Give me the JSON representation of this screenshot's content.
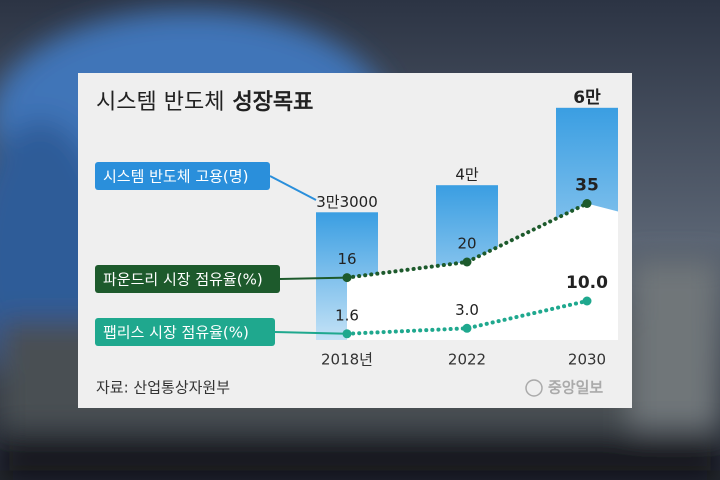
{
  "chart_data": {
    "type": "combo",
    "title": {
      "regular": "시스템 반도체",
      "bold": "성장목표"
    },
    "categories": [
      "2018년",
      "2022",
      "2030"
    ],
    "series": [
      {
        "name": "시스템 반도체 고용(명)",
        "type": "bar",
        "color": "#2a8fdb",
        "values": [
          33000,
          40000,
          60000
        ],
        "value_labels": [
          "3만3000",
          "4만",
          "6만"
        ]
      },
      {
        "name": "파운드리 시장 점유율(%)",
        "type": "line",
        "color": "#1d5a2c",
        "values": [
          16,
          20,
          35
        ]
      },
      {
        "name": "팹리스 시장 점유율(%)",
        "type": "line",
        "color": "#1fa88e",
        "values": [
          1.6,
          3.0,
          10.0
        ],
        "value_labels": [
          "1.6",
          "3.0",
          "10.0"
        ]
      }
    ],
    "source": "자료: 산업통상자원부",
    "logo": "중앙일보"
  }
}
